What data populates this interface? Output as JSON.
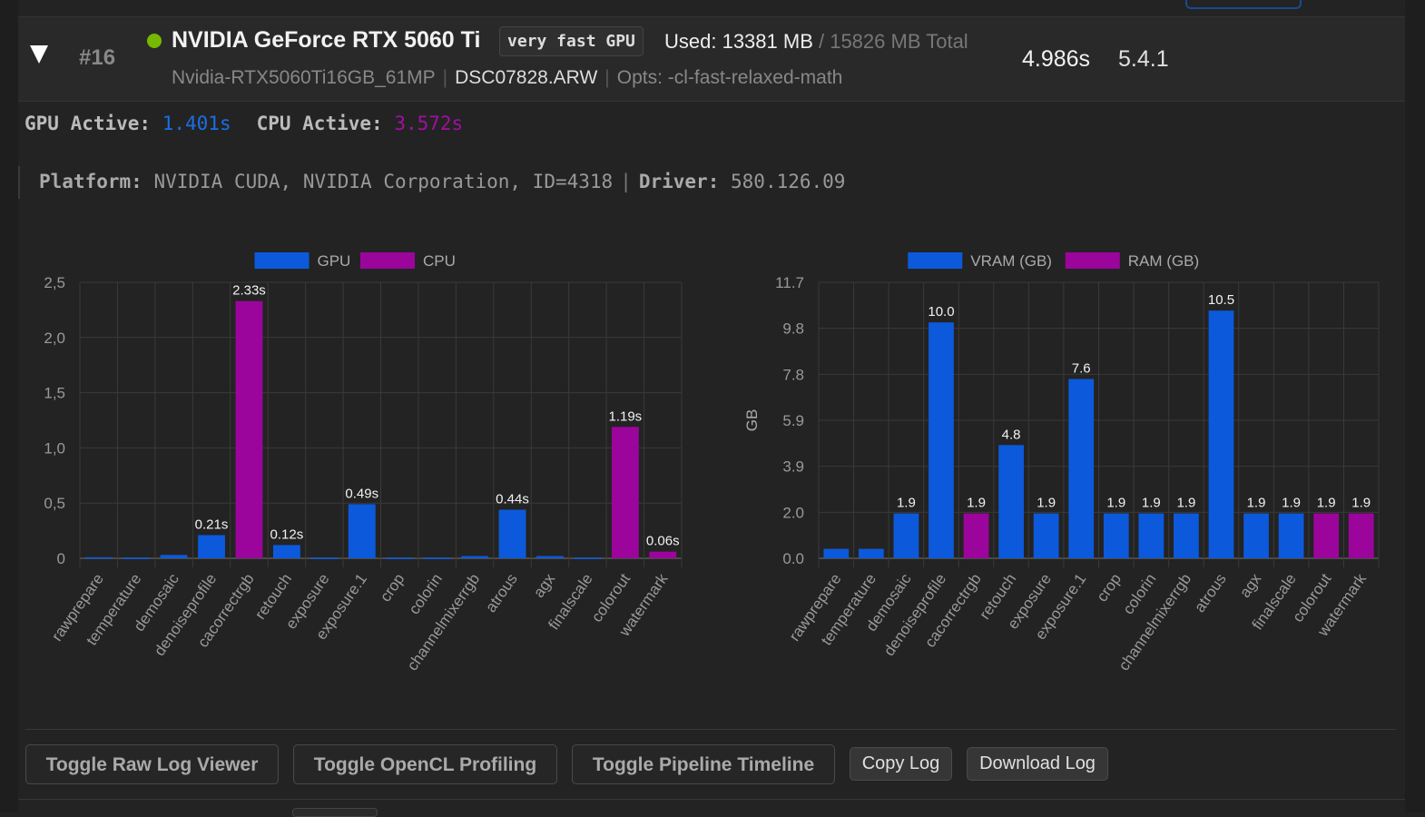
{
  "row": {
    "index": "#16",
    "gpu_name": "NVIDIA GeForce RTX 5060 Ti",
    "speed_badge": "very fast GPU",
    "mem_used": "Used: 13381 MB",
    "mem_total": " / 15826 MB Total",
    "profile": "Nvidia-RTX5060Ti16GB_61MP",
    "separator": "|",
    "file": "DSC07828.ARW",
    "opts": "Opts: -cl-fast-relaxed-math",
    "time": "4.986s",
    "version": "5.4.1",
    "status_color": "#76b900"
  },
  "active": {
    "gpu_label": "GPU Active:",
    "gpu_value": "1.401s",
    "cpu_label": "CPU Active:",
    "cpu_value": "3.572s"
  },
  "platform": {
    "platform_label": "Platform:",
    "platform_value": "NVIDIA CUDA, NVIDIA Corporation, ID=4318",
    "pipe": "|",
    "driver_label": "Driver:",
    "driver_value": "580.126.09"
  },
  "colors": {
    "gpu": "#0c5adb",
    "cpu": "#9c059c"
  },
  "chart_data": [
    {
      "type": "bar",
      "title": "",
      "xlabel": "",
      "ylabel": "",
      "legend_position": "top",
      "grid": true,
      "ylim": [
        0,
        2.5
      ],
      "yticks": [
        "0",
        "0,5",
        "1,0",
        "1,5",
        "2,0",
        "2,5"
      ],
      "categories": [
        "rawprepare",
        "temperature",
        "demosaic",
        "denoiseprofile",
        "cacorrectrgb",
        "retouch",
        "exposure",
        "exposure.1",
        "crop",
        "colorin",
        "channelmixerrgb",
        "atrous",
        "agx",
        "finalscale",
        "colorout",
        "watermark"
      ],
      "series": [
        {
          "name": "GPU"
        },
        {
          "name": "CPU"
        }
      ],
      "values": [
        0.01,
        0.005,
        0.03,
        0.21,
        2.33,
        0.12,
        0.005,
        0.49,
        0.005,
        0.005,
        0.02,
        0.44,
        0.02,
        0.005,
        1.19,
        0.06
      ],
      "device": [
        "GPU",
        "GPU",
        "GPU",
        "GPU",
        "CPU",
        "GPU",
        "GPU",
        "GPU",
        "GPU",
        "GPU",
        "GPU",
        "GPU",
        "GPU",
        "GPU",
        "CPU",
        "CPU"
      ],
      "labels": [
        "",
        "",
        "",
        "0.21s",
        "2.33s",
        "0.12s",
        "",
        "0.49s",
        "",
        "",
        "",
        "0.44s",
        "",
        "",
        "1.19s",
        "0.06s"
      ]
    },
    {
      "type": "bar",
      "title": "",
      "xlabel": "",
      "ylabel": "GB",
      "legend_position": "top",
      "grid": true,
      "ylim": [
        0,
        11.7
      ],
      "yticks": [
        "0.0",
        "2.0",
        "3.9",
        "5.9",
        "7.8",
        "9.8",
        "11.7"
      ],
      "categories": [
        "rawprepare",
        "temperature",
        "demosaic",
        "denoiseprofile",
        "cacorrectrgb",
        "retouch",
        "exposure",
        "exposure.1",
        "crop",
        "colorin",
        "channelmixerrgb",
        "atrous",
        "agx",
        "finalscale",
        "colorout",
        "watermark"
      ],
      "series": [
        {
          "name": "VRAM (GB)"
        },
        {
          "name": "RAM (GB)"
        }
      ],
      "values": [
        0.4,
        0.4,
        1.9,
        10.0,
        1.9,
        4.8,
        1.9,
        7.6,
        1.9,
        1.9,
        1.9,
        10.5,
        1.9,
        1.9,
        1.9,
        1.9
      ],
      "device": [
        "GPU",
        "GPU",
        "GPU",
        "GPU",
        "CPU",
        "GPU",
        "GPU",
        "GPU",
        "GPU",
        "GPU",
        "GPU",
        "GPU",
        "GPU",
        "GPU",
        "CPU",
        "CPU"
      ],
      "labels": [
        "",
        "",
        "1.9",
        "10.0",
        "1.9",
        "4.8",
        "1.9",
        "7.6",
        "1.9",
        "1.9",
        "1.9",
        "10.5",
        "1.9",
        "1.9",
        "1.9",
        "1.9"
      ]
    }
  ],
  "buttons": {
    "raw_log": "Toggle Raw Log Viewer",
    "opencl": "Toggle OpenCL Profiling",
    "timeline": "Toggle Pipeline Timeline",
    "copy": "Copy Log",
    "download": "Download Log"
  }
}
